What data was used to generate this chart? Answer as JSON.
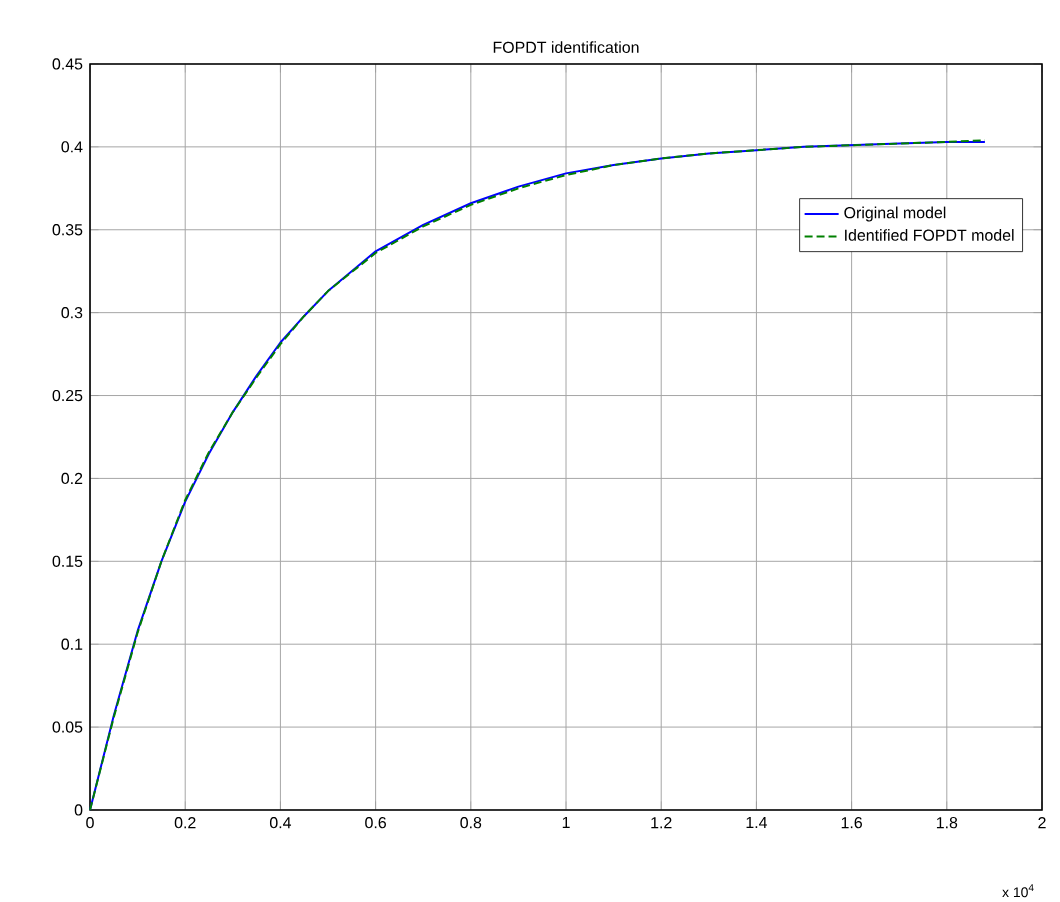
{
  "chart_data": {
    "type": "line",
    "title": "FOPDT identification",
    "x": [
      0,
      0.05,
      0.1,
      0.15,
      0.2,
      0.25,
      0.3,
      0.35,
      0.4,
      0.45,
      0.5,
      0.6,
      0.7,
      0.8,
      0.9,
      1.0,
      1.1,
      1.2,
      1.3,
      1.4,
      1.5,
      1.6,
      1.7,
      1.8,
      1.88
    ],
    "series": [
      {
        "name": "Original model",
        "color": "#0000ff",
        "line_style": "solid",
        "values": [
          0,
          0.057,
          0.108,
          0.15,
          0.186,
          0.215,
          0.24,
          0.262,
          0.282,
          0.298,
          0.313,
          0.337,
          0.353,
          0.366,
          0.376,
          0.384,
          0.389,
          0.393,
          0.396,
          0.398,
          0.4,
          0.401,
          0.402,
          0.403,
          0.403
        ]
      },
      {
        "name": "Identified FOPDT model",
        "color": "#008000",
        "line_style": "dashed",
        "values": [
          0,
          0.056,
          0.107,
          0.15,
          0.187,
          0.216,
          0.24,
          0.261,
          0.281,
          0.298,
          0.313,
          0.336,
          0.352,
          0.365,
          0.375,
          0.383,
          0.389,
          0.393,
          0.396,
          0.398,
          0.4,
          0.401,
          0.402,
          0.403,
          0.404
        ]
      }
    ],
    "xlim": [
      0,
      2
    ],
    "xticks": [
      0,
      0.2,
      0.4,
      0.6,
      0.8,
      1,
      1.2,
      1.4,
      1.6,
      1.8,
      2
    ],
    "ylim": [
      0,
      0.45
    ],
    "yticks": [
      0,
      0.05,
      0.1,
      0.15,
      0.2,
      0.25,
      0.3,
      0.35,
      0.4,
      0.45
    ],
    "grid": true,
    "legend": "right",
    "marker": "none",
    "annotations": [
      "x 10$^{4}$"
    ]
  }
}
